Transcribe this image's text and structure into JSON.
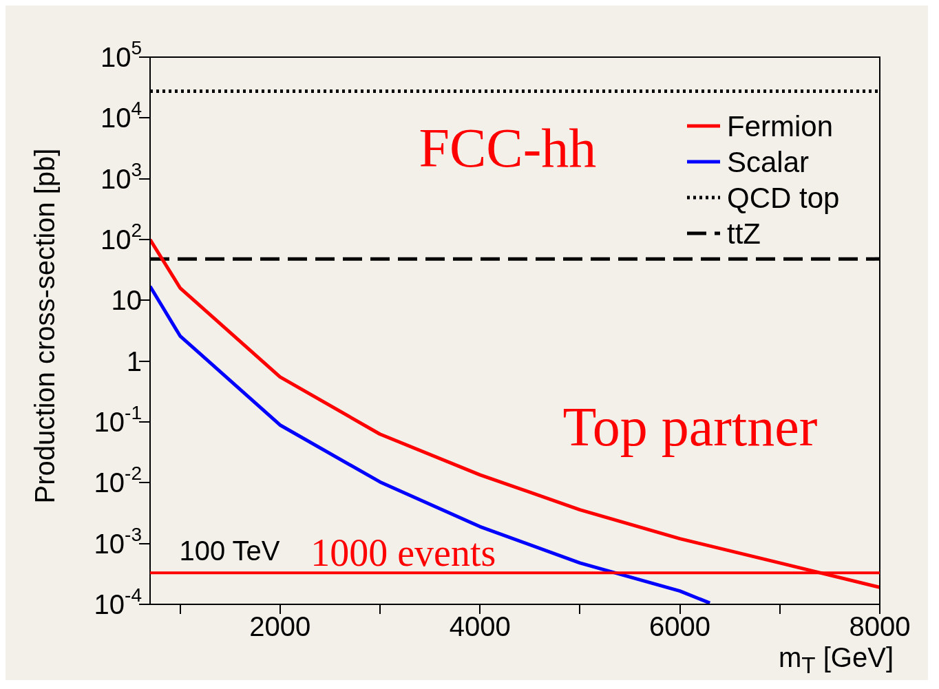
{
  "chart_data": {
    "type": "line",
    "xlabel": "m$_{T}$ [GeV]",
    "ylabel": "Production cross-section [pb]",
    "log": "y",
    "grid": false,
    "legend": "top right",
    "marker": "none",
    "xlim": [
      700,
      8000
    ],
    "xticks": [
      {
        "value": 1000,
        "label": null
      },
      2000,
      {
        "value": 3000,
        "label": null
      },
      4000,
      {
        "value": 5000,
        "label": null
      },
      6000,
      {
        "value": 7000,
        "label": null
      },
      8000
    ],
    "ylim": [
      0.0001,
      100000
    ],
    "yticks": [
      {
        "value": 0.0001,
        "label": "10$^{-4}$"
      },
      {
        "value": 0.001,
        "label": "10$^{-3}$"
      },
      {
        "value": 0.01,
        "label": "10$^{-2}$"
      },
      {
        "value": 0.1,
        "label": "10$^{-1}$"
      },
      1,
      10,
      {
        "value": 100,
        "label": "10$^{2}$"
      },
      {
        "value": 1000,
        "label": "10$^{3}$"
      },
      {
        "value": 10000,
        "label": "10$^{4}$"
      },
      {
        "value": 100000,
        "label": "10$^{5}$"
      }
    ],
    "series": [
      {
        "name": "Fermion",
        "color": "#ff0000",
        "line_style": "solid",
        "x": [
          700,
          1000,
          2000,
          3000,
          4000,
          5000,
          6000,
          7000,
          8000
        ],
        "values": [
          100,
          16,
          0.55,
          0.063,
          0.0135,
          0.0036,
          0.0012,
          0.00048,
          0.00019
        ]
      },
      {
        "name": "Scalar",
        "color": "#0000ff",
        "line_style": "solid",
        "x": [
          700,
          1000,
          2000,
          3000,
          4000,
          5000,
          6000,
          6300
        ],
        "values": [
          17,
          2.6,
          0.089,
          0.0103,
          0.0019,
          0.00048,
          0.000166,
          0.000105
        ]
      },
      {
        "name": "QCD top",
        "color": "#000000",
        "line_style": "dotted",
        "x": [
          700,
          8000
        ],
        "values": [
          27500,
          27500
        ]
      },
      {
        "name": "ttZ",
        "color": "#000000",
        "line_style": "dashed",
        "x": [
          700,
          8000
        ],
        "values": [
          48,
          48
        ]
      }
    ],
    "ref_lines": [
      {
        "axis": "y",
        "value": 0.00033,
        "label": "1000 events",
        "color": "#ff0000"
      }
    ],
    "annotations": [
      "FCC-hh",
      "Top partner",
      "100 TeV"
    ]
  }
}
